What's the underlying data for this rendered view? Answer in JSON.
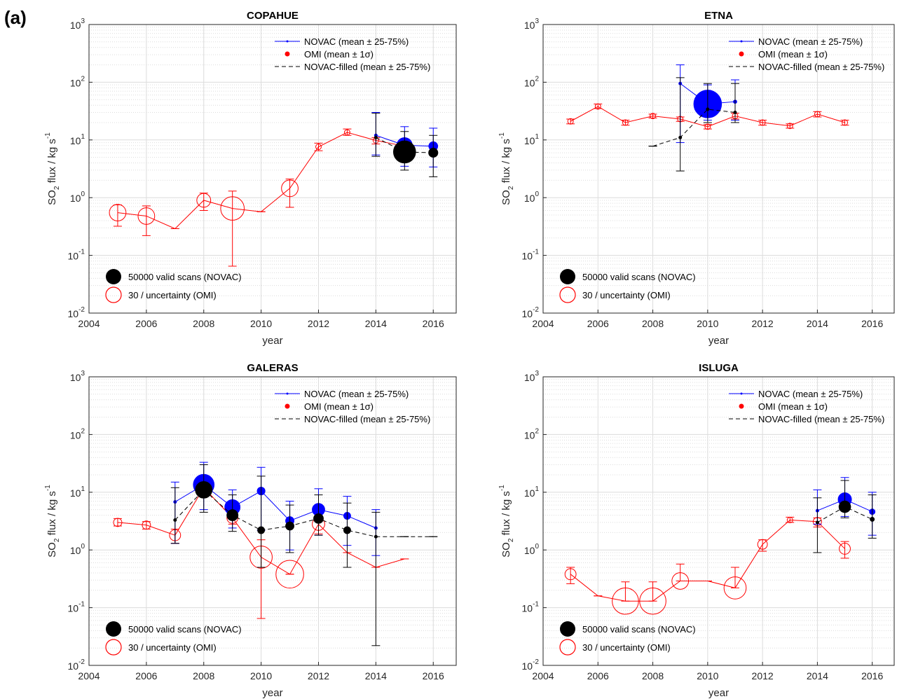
{
  "figure_label": "(a)",
  "legend": {
    "novac": "NOVAC (mean ± 25-75%)",
    "omi": "OMI (mean ± 1σ)",
    "filled": "NOVAC-filled (mean ± 25-75%)",
    "size_novac": "50000 valid scans (NOVAC)",
    "size_omi": "30 / uncertainty (OMI)"
  },
  "colors": {
    "novac": "#0000ff",
    "omi": "#ff0000",
    "filled": "#000000",
    "grid": "#dcdcdc"
  },
  "chart_data": [
    {
      "type": "scatter",
      "title": "COPAHUE",
      "xlabel": "year",
      "ylabel": "SO2 flux / kg s-1",
      "xlim": [
        2004,
        2016.8
      ],
      "ylim": [
        0.01,
        1000
      ],
      "yscale": "log",
      "grid": true,
      "xticks": [
        2004,
        2006,
        2008,
        2010,
        2012,
        2014,
        2016
      ],
      "series": [
        {
          "name": "NOVAC (mean ± 25-75%)",
          "points": [
            {
              "x": 2014,
              "y": 12,
              "lo": 5.5,
              "hi": 30,
              "size": 0.1
            },
            {
              "x": 2015,
              "y": 8.1,
              "lo": 3.5,
              "hi": 17,
              "size": 0.55
            },
            {
              "x": 2016,
              "y": 7.8,
              "lo": 3.4,
              "hi": 16,
              "size": 0.32
            }
          ]
        },
        {
          "name": "OMI (mean ± 1σ)",
          "points": [
            {
              "x": 2005,
              "y": 0.55,
              "lo": 0.32,
              "hi": 0.75,
              "size": 0.6
            },
            {
              "x": 2006,
              "y": 0.48,
              "lo": 0.22,
              "hi": 0.72,
              "size": 0.6
            },
            {
              "x": 2007,
              "y": 0.29,
              "lo": 0.29,
              "hi": 0.29,
              "size": 0
            },
            {
              "x": 2008,
              "y": 0.9,
              "lo": 0.6,
              "hi": 1.2,
              "size": 0.5
            },
            {
              "x": 2009,
              "y": 0.65,
              "lo": 0.065,
              "hi": 1.3,
              "size": 0.85
            },
            {
              "x": 2010,
              "y": 0.57,
              "lo": 0.57,
              "hi": 0.57,
              "size": 0
            },
            {
              "x": 2011,
              "y": 1.45,
              "lo": 0.68,
              "hi": 2.1,
              "size": 0.6
            },
            {
              "x": 2012,
              "y": 7.6,
              "lo": 6.5,
              "hi": 8.8,
              "size": 0.2
            },
            {
              "x": 2013,
              "y": 13.5,
              "lo": 12,
              "hi": 15.5,
              "size": 0.2
            },
            {
              "x": 2014,
              "y": 9.8,
              "lo": 8.5,
              "hi": 11,
              "size": 0.2
            },
            {
              "x": 2015,
              "y": 7.8,
              "lo": 7.2,
              "hi": 8.5,
              "size": 0.2
            }
          ]
        },
        {
          "name": "NOVAC-filled (mean ± 25-75%)",
          "points": [
            {
              "x": 2014,
              "y": 11,
              "lo": 5.2,
              "hi": 29,
              "size": 0.1
            },
            {
              "x": 2015,
              "y": 6.2,
              "lo": 3,
              "hi": 14,
              "size": 0.8
            },
            {
              "x": 2016,
              "y": 6,
              "lo": 2.3,
              "hi": 12,
              "size": 0.33
            }
          ]
        }
      ]
    },
    {
      "type": "scatter",
      "title": "ETNA",
      "xlabel": "year",
      "ylabel": "SO2 flux / kg s-1",
      "xlim": [
        2004,
        2016.8
      ],
      "ylim": [
        0.01,
        1000
      ],
      "yscale": "log",
      "grid": true,
      "xticks": [
        2004,
        2006,
        2008,
        2010,
        2012,
        2014,
        2016
      ],
      "series": [
        {
          "name": "NOVAC (mean ± 25-75%)",
          "points": [
            {
              "x": 2009,
              "y": 95,
              "lo": 9,
              "hi": 200,
              "size": 0.1
            },
            {
              "x": 2010,
              "y": 42,
              "lo": 22,
              "hi": 90,
              "size": 1.0
            },
            {
              "x": 2011,
              "y": 46,
              "lo": 22,
              "hi": 110,
              "size": 0.12
            }
          ]
        },
        {
          "name": "OMI (mean ± 1σ)",
          "points": [
            {
              "x": 2005,
              "y": 21,
              "lo": 19,
              "hi": 23,
              "size": 0.2
            },
            {
              "x": 2006,
              "y": 38,
              "lo": 35,
              "hi": 42,
              "size": 0.2
            },
            {
              "x": 2007,
              "y": 20,
              "lo": 18,
              "hi": 22,
              "size": 0.2
            },
            {
              "x": 2008,
              "y": 26,
              "lo": 24,
              "hi": 28,
              "size": 0.2
            },
            {
              "x": 2009,
              "y": 23,
              "lo": 21,
              "hi": 25,
              "size": 0.2
            },
            {
              "x": 2010,
              "y": 17,
              "lo": 15.5,
              "hi": 18.5,
              "size": 0.2
            },
            {
              "x": 2011,
              "y": 26,
              "lo": 23,
              "hi": 29,
              "size": 0.2
            },
            {
              "x": 2012,
              "y": 20,
              "lo": 18,
              "hi": 22,
              "size": 0.2
            },
            {
              "x": 2013,
              "y": 17.5,
              "lo": 16,
              "hi": 19,
              "size": 0.2
            },
            {
              "x": 2014,
              "y": 28,
              "lo": 25,
              "hi": 31,
              "size": 0.2
            },
            {
              "x": 2015,
              "y": 20,
              "lo": 18,
              "hi": 22,
              "size": 0.2
            }
          ]
        },
        {
          "name": "NOVAC-filled (mean ± 25-75%)",
          "points": [
            {
              "x": 2008,
              "y": 7.8,
              "lo": 7.8,
              "hi": 7.8,
              "size": 0
            },
            {
              "x": 2009,
              "y": 11,
              "lo": 2.9,
              "hi": 120,
              "size": 0.05
            },
            {
              "x": 2010,
              "y": 34,
              "lo": 20,
              "hi": 95,
              "size": 0.1
            },
            {
              "x": 2011,
              "y": 30,
              "lo": 20,
              "hi": 95,
              "size": 0.1
            }
          ]
        }
      ]
    },
    {
      "type": "scatter",
      "title": "GALERAS",
      "xlabel": "year",
      "ylabel": "SO2 flux / kg s-1",
      "xlim": [
        2004,
        2016.8
      ],
      "ylim": [
        0.01,
        1000
      ],
      "yscale": "log",
      "grid": true,
      "xticks": [
        2004,
        2006,
        2008,
        2010,
        2012,
        2014,
        2016
      ],
      "series": [
        {
          "name": "NOVAC (mean ± 25-75%)",
          "points": [
            {
              "x": 2007,
              "y": 6.8,
              "lo": 1.3,
              "hi": 15,
              "size": 0.05
            },
            {
              "x": 2008,
              "y": 13.5,
              "lo": 5,
              "hi": 33,
              "size": 0.75
            },
            {
              "x": 2009,
              "y": 5.5,
              "lo": 2.4,
              "hi": 11,
              "size": 0.55
            },
            {
              "x": 2010,
              "y": 10.5,
              "lo": 2.2,
              "hi": 27,
              "size": 0.28
            },
            {
              "x": 2011,
              "y": 3.2,
              "lo": 1,
              "hi": 7,
              "size": 0.3
            },
            {
              "x": 2012,
              "y": 5,
              "lo": 1.8,
              "hi": 11.5,
              "size": 0.45
            },
            {
              "x": 2013,
              "y": 3.9,
              "lo": 1.2,
              "hi": 8.5,
              "size": 0.25
            },
            {
              "x": 2014,
              "y": 2.4,
              "lo": 0.8,
              "hi": 5,
              "size": 0.05
            }
          ]
        },
        {
          "name": "OMI (mean ± 1σ)",
          "points": [
            {
              "x": 2005,
              "y": 3,
              "lo": 2.6,
              "hi": 3.5,
              "size": 0.3
            },
            {
              "x": 2006,
              "y": 2.7,
              "lo": 2.3,
              "hi": 3.1,
              "size": 0.3
            },
            {
              "x": 2007,
              "y": 1.8,
              "lo": 1.3,
              "hi": 2.3,
              "size": 0.4
            },
            {
              "x": 2008,
              "y": 12,
              "lo": 9,
              "hi": 15,
              "size": 0.4
            },
            {
              "x": 2009,
              "y": 3.6,
              "lo": 2.8,
              "hi": 4.6,
              "size": 0.4
            },
            {
              "x": 2010,
              "y": 0.75,
              "lo": 0.065,
              "hi": 1.5,
              "size": 0.8
            },
            {
              "x": 2011,
              "y": 0.38,
              "lo": 0.38,
              "hi": 0.38,
              "size": 1.0
            },
            {
              "x": 2012,
              "y": 2.8,
              "lo": 1.9,
              "hi": 3.8,
              "size": 0.45
            },
            {
              "x": 2013,
              "y": 0.9,
              "lo": 0.9,
              "hi": 0.9,
              "size": 0
            },
            {
              "x": 2014,
              "y": 0.5,
              "lo": 0.5,
              "hi": 0.5,
              "size": 0
            },
            {
              "x": 2015,
              "y": 0.7,
              "lo": 0.7,
              "hi": 0.7,
              "size": 0
            }
          ]
        },
        {
          "name": "NOVAC-filled (mean ± 25-75%)",
          "points": [
            {
              "x": 2007,
              "y": 3.3,
              "lo": 1.3,
              "hi": 12,
              "size": 0.05
            },
            {
              "x": 2008,
              "y": 11,
              "lo": 4.5,
              "hi": 30,
              "size": 0.6
            },
            {
              "x": 2009,
              "y": 4,
              "lo": 2.1,
              "hi": 9,
              "size": 0.4
            },
            {
              "x": 2010,
              "y": 2.2,
              "lo": 0.5,
              "hi": 19,
              "size": 0.25
            },
            {
              "x": 2011,
              "y": 2.6,
              "lo": 0.9,
              "hi": 6,
              "size": 0.3
            },
            {
              "x": 2012,
              "y": 3.5,
              "lo": 1.8,
              "hi": 9,
              "size": 0.35
            },
            {
              "x": 2013,
              "y": 2.2,
              "lo": 0.5,
              "hi": 6.5,
              "size": 0.25
            },
            {
              "x": 2014,
              "y": 1.7,
              "lo": 0.022,
              "hi": 4.5,
              "size": 0.05
            },
            {
              "x": 2015,
              "y": 1.7,
              "lo": 1.7,
              "hi": 1.7,
              "size": 0
            },
            {
              "x": 2016,
              "y": 1.7,
              "lo": 1.7,
              "hi": 1.7,
              "size": 0
            }
          ]
        }
      ]
    },
    {
      "type": "scatter",
      "title": "ISLUGA",
      "xlabel": "year",
      "ylabel": "SO2 flux / kg s-1",
      "xlim": [
        2004,
        2016.8
      ],
      "ylim": [
        0.01,
        1000
      ],
      "yscale": "log",
      "grid": true,
      "xticks": [
        2004,
        2006,
        2008,
        2010,
        2012,
        2014,
        2016
      ],
      "series": [
        {
          "name": "NOVAC (mean ± 25-75%)",
          "points": [
            {
              "x": 2014,
              "y": 4.8,
              "lo": 2.8,
              "hi": 11,
              "size": 0.1
            },
            {
              "x": 2015,
              "y": 7.5,
              "lo": 3.8,
              "hi": 18,
              "size": 0.48
            },
            {
              "x": 2016,
              "y": 4.6,
              "lo": 1.8,
              "hi": 10,
              "size": 0.2
            }
          ]
        },
        {
          "name": "OMI (mean ± 1σ)",
          "points": [
            {
              "x": 2005,
              "y": 0.38,
              "lo": 0.26,
              "hi": 0.5,
              "size": 0.4
            },
            {
              "x": 2006,
              "y": 0.16,
              "lo": 0.16,
              "hi": 0.16,
              "size": 0
            },
            {
              "x": 2007,
              "y": 0.13,
              "lo": 0.13,
              "hi": 0.28,
              "size": 0.95
            },
            {
              "x": 2008,
              "y": 0.13,
              "lo": 0.13,
              "hi": 0.28,
              "size": 0.95
            },
            {
              "x": 2009,
              "y": 0.29,
              "lo": 0.29,
              "hi": 0.57,
              "size": 0.6
            },
            {
              "x": 2010,
              "y": 0.29,
              "lo": 0.29,
              "hi": 0.29,
              "size": 0
            },
            {
              "x": 2011,
              "y": 0.22,
              "lo": 0.22,
              "hi": 0.5,
              "size": 0.8
            },
            {
              "x": 2012,
              "y": 1.25,
              "lo": 0.95,
              "hi": 1.5,
              "size": 0.35
            },
            {
              "x": 2013,
              "y": 3.3,
              "lo": 3,
              "hi": 3.7,
              "size": 0.2
            },
            {
              "x": 2014,
              "y": 3.1,
              "lo": 2.5,
              "hi": 3.6,
              "size": 0.3
            },
            {
              "x": 2015,
              "y": 1.05,
              "lo": 0.72,
              "hi": 1.4,
              "size": 0.4
            }
          ]
        },
        {
          "name": "NOVAC-filled (mean ± 25-75%)",
          "points": [
            {
              "x": 2014,
              "y": 3,
              "lo": 0.9,
              "hi": 8,
              "size": 0.1
            },
            {
              "x": 2015,
              "y": 5.6,
              "lo": 3.6,
              "hi": 16,
              "size": 0.42
            },
            {
              "x": 2016,
              "y": 3.4,
              "lo": 1.6,
              "hi": 9,
              "size": 0.15
            }
          ]
        }
      ]
    }
  ]
}
